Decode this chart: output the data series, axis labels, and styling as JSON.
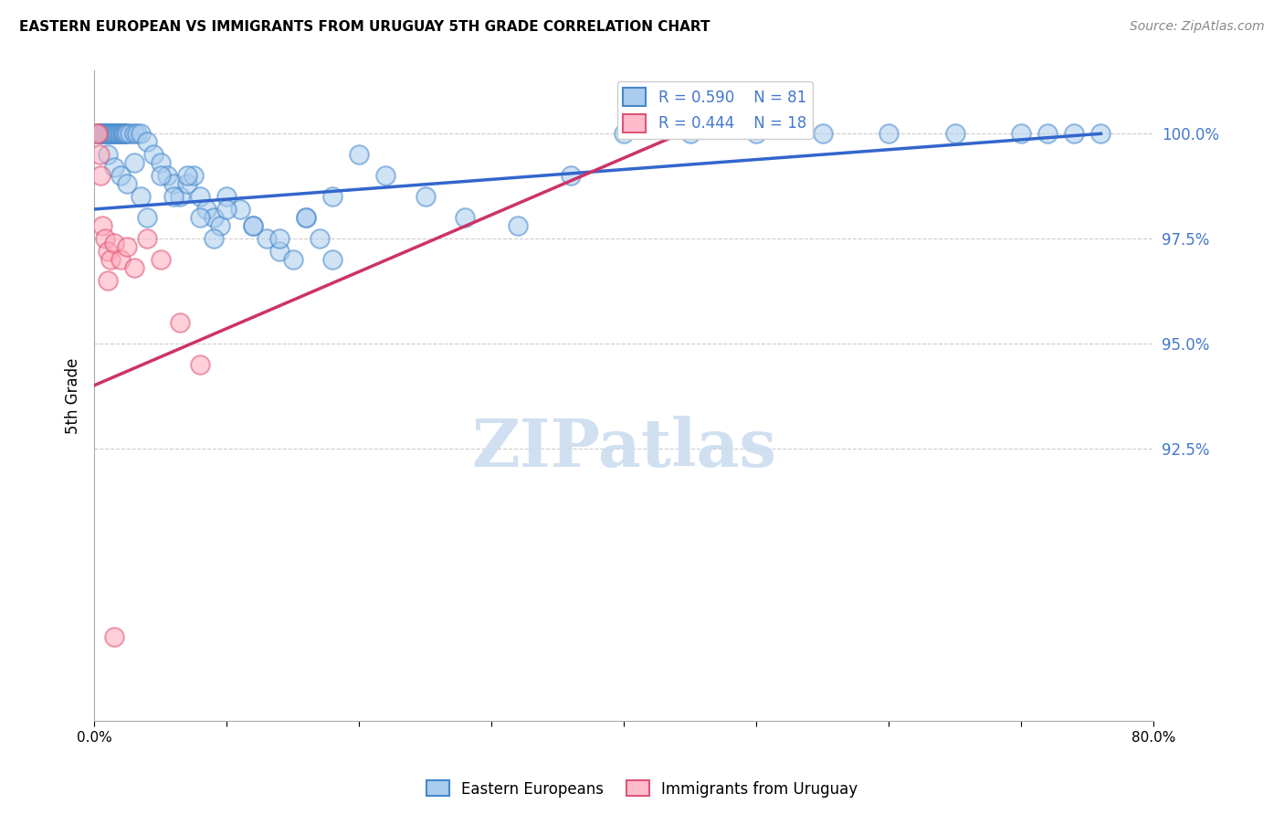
{
  "title": "EASTERN EUROPEAN VS IMMIGRANTS FROM URUGUAY 5TH GRADE CORRELATION CHART",
  "source": "Source: ZipAtlas.com",
  "ylabel": "5th Grade",
  "ytick_values": [
    92.5,
    95.0,
    97.5,
    100.0
  ],
  "xlim": [
    0.0,
    80.0
  ],
  "ylim": [
    86.0,
    101.5
  ],
  "blue_R": 0.59,
  "blue_N": 81,
  "pink_R": 0.444,
  "pink_N": 18,
  "blue_fill": "#aaccee",
  "blue_edge": "#4488cc",
  "pink_fill": "#ffaabb",
  "pink_edge": "#dd5577",
  "blue_line": "#3366cc",
  "pink_line": "#cc3366",
  "legend_label_blue": "Eastern Europeans",
  "legend_label_pink": "Immigrants from Uruguay",
  "watermark": "ZIPatlas",
  "background_color": "#ffffff",
  "blue_x": [
    0.3,
    0.4,
    0.5,
    0.6,
    0.7,
    0.8,
    0.9,
    1.0,
    1.1,
    1.2,
    1.3,
    1.4,
    1.5,
    1.6,
    1.7,
    1.8,
    1.9,
    2.0,
    2.1,
    2.2,
    2.3,
    2.4,
    2.5,
    2.7,
    3.0,
    3.2,
    3.5,
    4.0,
    4.5,
    5.0,
    5.5,
    6.0,
    6.5,
    7.0,
    7.5,
    8.0,
    8.5,
    9.0,
    9.5,
    10.0,
    11.0,
    12.0,
    13.0,
    14.0,
    15.0,
    16.0,
    17.0,
    18.0,
    20.0,
    22.0,
    25.0,
    28.0,
    32.0,
    36.0,
    40.0,
    45.0,
    50.0,
    55.0,
    60.0,
    65.0,
    70.0,
    72.0,
    74.0,
    76.0,
    1.0,
    1.5,
    2.0,
    2.5,
    3.0,
    3.5,
    4.0,
    5.0,
    6.0,
    7.0,
    8.0,
    9.0,
    10.0,
    12.0,
    14.0,
    16.0,
    18.0
  ],
  "blue_y": [
    100.0,
    100.0,
    100.0,
    100.0,
    100.0,
    100.0,
    100.0,
    100.0,
    100.0,
    100.0,
    100.0,
    100.0,
    100.0,
    100.0,
    100.0,
    100.0,
    100.0,
    100.0,
    100.0,
    100.0,
    100.0,
    100.0,
    100.0,
    100.0,
    100.0,
    100.0,
    100.0,
    99.8,
    99.5,
    99.3,
    99.0,
    98.8,
    98.5,
    98.8,
    99.0,
    98.5,
    98.2,
    98.0,
    97.8,
    98.5,
    98.2,
    97.8,
    97.5,
    97.2,
    97.0,
    98.0,
    97.5,
    98.5,
    99.5,
    99.0,
    98.5,
    98.0,
    97.8,
    99.0,
    100.0,
    100.0,
    100.0,
    100.0,
    100.0,
    100.0,
    100.0,
    100.0,
    100.0,
    100.0,
    99.5,
    99.2,
    99.0,
    98.8,
    99.3,
    98.5,
    98.0,
    99.0,
    98.5,
    99.0,
    98.0,
    97.5,
    98.2,
    97.8,
    97.5,
    98.0,
    97.0
  ],
  "pink_x": [
    0.2,
    0.3,
    0.4,
    0.5,
    0.6,
    0.8,
    1.0,
    1.2,
    1.5,
    2.0,
    2.5,
    3.0,
    4.0,
    5.0,
    6.5,
    8.0,
    1.0,
    1.5
  ],
  "pink_y": [
    100.0,
    100.0,
    99.5,
    99.0,
    97.8,
    97.5,
    97.2,
    97.0,
    97.4,
    97.0,
    97.3,
    96.8,
    97.5,
    97.0,
    95.5,
    94.5,
    96.5,
    88.0
  ],
  "blue_trend_x0": 0.0,
  "blue_trend_y0": 98.2,
  "blue_trend_x1": 76.0,
  "blue_trend_y1": 100.0,
  "pink_trend_x0": 0.0,
  "pink_trend_y0": 94.0,
  "pink_trend_x1": 45.0,
  "pink_trend_y1": 100.1
}
